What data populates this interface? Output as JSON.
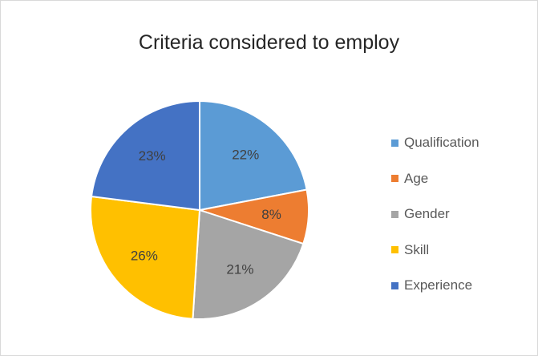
{
  "chart_data": {
    "type": "pie",
    "title": "Criteria considered to employ",
    "categories": [
      "Qualification",
      "Age",
      "Gender",
      "Skill",
      "Experience"
    ],
    "values": [
      22,
      8,
      21,
      26,
      23
    ],
    "data_labels": [
      "22%",
      "8%",
      "21%",
      "26%",
      "23%"
    ],
    "colors": [
      "#5b9bd5",
      "#ed7d31",
      "#a5a5a5",
      "#ffc000",
      "#4472c4"
    ],
    "legend_position": "right",
    "start_angle_deg": 0,
    "direction": "clockwise"
  }
}
